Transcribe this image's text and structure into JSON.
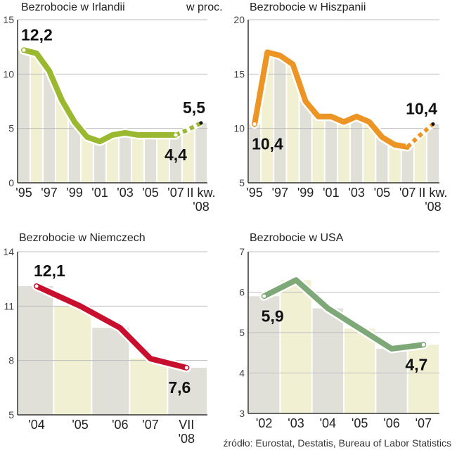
{
  "source": "źródło: Eurostat,  Destatis, Bureau of Labor Statistics",
  "colors": {
    "bar_gray": "#e0dfd8",
    "bar_cream": "#f1f0d2",
    "grid": "#bdbdbd",
    "axis": "#333333"
  },
  "chart_data": [
    {
      "type": "line",
      "title": "Bezrobocie w Irlandii",
      "unit": "w proc.",
      "ylim": [
        0,
        15
      ],
      "yticks": [
        "0",
        "5",
        "10",
        "15"
      ],
      "ytick_values": [
        0,
        5,
        10,
        15
      ],
      "xticks": [
        "'95",
        "'97",
        "'99",
        "'01",
        "'03",
        "'05",
        "'07",
        "II kw.\n'08"
      ],
      "xtick_index": [
        0,
        2,
        4,
        6,
        8,
        10,
        12,
        14
      ],
      "x": [
        "1995",
        "1996",
        "1997",
        "1998",
        "1999",
        "2000",
        "2001",
        "2002",
        "2003",
        "2004",
        "2005",
        "2006",
        "2007",
        "2008",
        "II kw. 2008"
      ],
      "values": [
        12.2,
        11.9,
        10.3,
        7.6,
        5.6,
        4.2,
        3.8,
        4.4,
        4.6,
        4.4,
        4.4,
        4.4,
        4.4,
        4.9,
        5.5
      ],
      "dashed_from_index": 12,
      "line_color": "#9ab830",
      "labels": [
        {
          "index": 0,
          "text": "12,2",
          "pos": "above"
        },
        {
          "index": 12,
          "text": "4,4",
          "pos": "below"
        },
        {
          "index": 14,
          "text": "5,5",
          "pos": "above"
        }
      ],
      "grid": true
    },
    {
      "type": "line",
      "title": "Bezrobocie w Hiszpanii",
      "ylim": [
        5,
        20
      ],
      "yticks": [
        "5",
        "10",
        "15",
        "20"
      ],
      "ytick_values": [
        5,
        10,
        15,
        20
      ],
      "xticks": [
        "'95",
        "'97",
        "'99",
        "'01",
        "'03",
        "'05",
        "'07",
        "II kw.\n'08"
      ],
      "xtick_index": [
        0,
        2,
        4,
        6,
        8,
        10,
        12,
        14
      ],
      "x": [
        "1995",
        "1996",
        "1997",
        "1998",
        "1999",
        "2000",
        "2001",
        "2002",
        "2003",
        "2004",
        "2005",
        "2006",
        "2007",
        "2008",
        "II kw. 2008"
      ],
      "values": [
        10.4,
        17.0,
        16.7,
        15.9,
        12.5,
        11.1,
        11.1,
        10.6,
        11.1,
        10.6,
        9.2,
        8.5,
        8.3,
        9.4,
        10.4
      ],
      "dashed_from_index": 12,
      "line_color": "#ed9524",
      "labels": [
        {
          "index": 0,
          "text": "10,4",
          "pos": "below"
        },
        {
          "index": 14,
          "text": "10,4",
          "pos": "above"
        }
      ],
      "grid": true
    },
    {
      "type": "line",
      "title": "Bezrobocie w Niemczech",
      "ylim": [
        5,
        14
      ],
      "yticks": [
        "5",
        "8",
        "11",
        "14"
      ],
      "ytick_values": [
        5,
        8,
        11,
        14
      ],
      "xticks": [
        "'04",
        "'05",
        "'06",
        "'07",
        "VII\n'08"
      ],
      "xtick_index": [
        0,
        1,
        2,
        3,
        4
      ],
      "x": [
        "2004",
        "2005",
        "2006",
        "2007",
        "VII 2008"
      ],
      "values": [
        12.1,
        11.0,
        9.8,
        8.1,
        7.6
      ],
      "x_positions": [
        0.1,
        0.33,
        0.54,
        0.7,
        0.89
      ],
      "bar_edges": [
        0.0,
        0.19,
        0.39,
        0.59,
        0.79,
        1.0
      ],
      "dashed_from_index": null,
      "line_color": "#c8102e",
      "labels": [
        {
          "index": 0,
          "text": "12,1",
          "pos": "above"
        },
        {
          "index": 4,
          "text": "7,6",
          "pos": "below"
        }
      ],
      "grid": true
    },
    {
      "type": "line",
      "title": "Bezrobocie w USA",
      "ylim": [
        3,
        7
      ],
      "yticks": [
        "3",
        "4",
        "5",
        "6",
        "7"
      ],
      "ytick_values": [
        3,
        4,
        5,
        6,
        7
      ],
      "xticks": [
        "'02",
        "'03",
        "'04",
        "'05",
        "'06",
        "'07"
      ],
      "xtick_index": [
        0,
        1,
        2,
        3,
        4,
        5
      ],
      "x": [
        "2002",
        "2003",
        "2004",
        "2005",
        "2006",
        "2007"
      ],
      "values": [
        5.9,
        6.3,
        5.6,
        5.1,
        4.6,
        4.7
      ],
      "dashed_from_index": null,
      "line_color": "#7ea878",
      "labels": [
        {
          "index": 0,
          "text": "5,9",
          "pos": "below"
        },
        {
          "index": 5,
          "text": "4,7",
          "pos": "below"
        }
      ],
      "grid": true
    }
  ]
}
